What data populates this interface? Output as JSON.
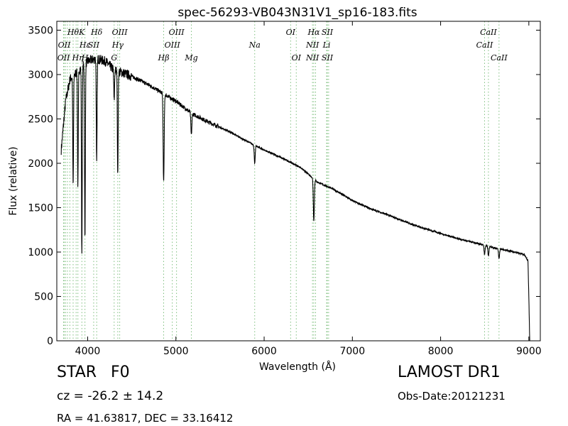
{
  "chart_data": {
    "type": "line",
    "title": "spec-56293-VB043N31V1_sp16-183.fits",
    "xlabel": "Wavelength (Å)",
    "ylabel": "Flux (relative)",
    "xlim": [
      3650,
      9130
    ],
    "ylim": [
      0,
      3600
    ],
    "xticks": [
      4000,
      5000,
      6000,
      7000,
      8000,
      9000
    ],
    "yticks": [
      0,
      500,
      1000,
      1500,
      2000,
      2500,
      3000,
      3500
    ],
    "grid": false,
    "series": [
      {
        "color": "#000000",
        "continuum": [
          [
            3700,
            2150
          ],
          [
            3750,
            2700
          ],
          [
            3800,
            2950
          ],
          [
            3900,
            3050
          ],
          [
            4000,
            3150
          ],
          [
            4100,
            3180
          ],
          [
            4200,
            3150
          ],
          [
            4300,
            3050
          ],
          [
            4400,
            3020
          ],
          [
            4500,
            2980
          ],
          [
            4600,
            2930
          ],
          [
            4700,
            2880
          ],
          [
            4800,
            2820
          ],
          [
            5000,
            2700
          ],
          [
            5200,
            2550
          ],
          [
            5400,
            2450
          ],
          [
            5600,
            2360
          ],
          [
            5800,
            2250
          ],
          [
            6000,
            2150
          ],
          [
            6200,
            2060
          ],
          [
            6400,
            1960
          ],
          [
            6500,
            1880
          ],
          [
            6600,
            1790
          ],
          [
            6800,
            1700
          ],
          [
            7000,
            1580
          ],
          [
            7200,
            1490
          ],
          [
            7400,
            1420
          ],
          [
            7600,
            1340
          ],
          [
            7800,
            1270
          ],
          [
            8000,
            1210
          ],
          [
            8200,
            1150
          ],
          [
            8400,
            1100
          ],
          [
            8600,
            1050
          ],
          [
            8800,
            1010
          ],
          [
            8950,
            970
          ],
          [
            8990,
            900
          ],
          [
            9000,
            500
          ],
          [
            9010,
            0
          ]
        ],
        "absorption_lines": [
          {
            "wave": 3835,
            "depth": 1250
          },
          {
            "wave": 3889,
            "depth": 1300
          },
          {
            "wave": 3934,
            "depth": 2100
          },
          {
            "wave": 3969,
            "depth": 2000
          },
          {
            "wave": 4102,
            "depth": 1200
          },
          {
            "wave": 4300,
            "depth": 350
          },
          {
            "wave": 4341,
            "depth": 1200
          },
          {
            "wave": 4861,
            "depth": 1000
          },
          {
            "wave": 5175,
            "depth": 250
          },
          {
            "wave": 5893,
            "depth": 200
          },
          {
            "wave": 6563,
            "depth": 470
          },
          {
            "wave": 8498,
            "depth": 100
          },
          {
            "wave": 8542,
            "depth": 110
          },
          {
            "wave": 8662,
            "depth": 110
          }
        ]
      }
    ],
    "line_markers": [
      {
        "wave": 3727,
        "labels": [
          {
            "text": "OII",
            "row": 3
          }
        ]
      },
      {
        "wave": 3734,
        "labels": [
          {
            "text": "OII",
            "row": 2
          }
        ]
      },
      {
        "wave": 3750,
        "labels": []
      },
      {
        "wave": 3771,
        "labels": []
      },
      {
        "wave": 3798,
        "labels": []
      },
      {
        "wave": 3835,
        "labels": [
          {
            "text": "Hθ",
            "row": 1
          }
        ]
      },
      {
        "wave": 3869,
        "labels": []
      },
      {
        "wave": 3889,
        "labels": [
          {
            "text": "Hη",
            "row": 3
          }
        ]
      },
      {
        "wave": 3934,
        "labels": [
          {
            "text": "K",
            "row": 1
          }
        ]
      },
      {
        "wave": 3969,
        "labels": [
          {
            "text": "Hε",
            "row": 2
          },
          {
            "text": "H",
            "row": 3
          }
        ]
      },
      {
        "wave": 4068,
        "labels": [
          {
            "text": "SII",
            "row": 2
          }
        ]
      },
      {
        "wave": 4102,
        "labels": [
          {
            "text": "Hδ",
            "row": 1
          }
        ]
      },
      {
        "wave": 4300,
        "labels": [
          {
            "text": "G",
            "row": 3
          }
        ]
      },
      {
        "wave": 4341,
        "labels": [
          {
            "text": "Hγ",
            "row": 2
          }
        ]
      },
      {
        "wave": 4363,
        "labels": [
          {
            "text": "OIII",
            "row": 1
          }
        ]
      },
      {
        "wave": 4861,
        "labels": [
          {
            "text": "Hβ",
            "row": 3
          }
        ]
      },
      {
        "wave": 4959,
        "labels": [
          {
            "text": "OIII",
            "row": 2
          }
        ]
      },
      {
        "wave": 5007,
        "labels": [
          {
            "text": "OIII",
            "row": 1
          }
        ]
      },
      {
        "wave": 5175,
        "labels": [
          {
            "text": "Mg",
            "row": 3
          }
        ]
      },
      {
        "wave": 5893,
        "labels": [
          {
            "text": "Na",
            "row": 2
          }
        ]
      },
      {
        "wave": 6300,
        "labels": [
          {
            "text": "OI",
            "row": 1
          }
        ]
      },
      {
        "wave": 6364,
        "labels": [
          {
            "text": "OI",
            "row": 3
          }
        ]
      },
      {
        "wave": 6548,
        "labels": [
          {
            "text": "NII",
            "row": 2
          },
          {
            "text": "NII",
            "row": 3
          }
        ]
      },
      {
        "wave": 6563,
        "labels": [
          {
            "text": "Hα",
            "row": 1
          }
        ]
      },
      {
        "wave": 6583,
        "labels": []
      },
      {
        "wave": 6708,
        "labels": [
          {
            "text": "Li",
            "row": 2
          }
        ]
      },
      {
        "wave": 6716,
        "labels": [
          {
            "text": "SII",
            "row": 1
          },
          {
            "text": "SII",
            "row": 3
          }
        ]
      },
      {
        "wave": 6731,
        "labels": []
      },
      {
        "wave": 8498,
        "labels": [
          {
            "text": "CaII",
            "row": 2
          }
        ]
      },
      {
        "wave": 8542,
        "labels": [
          {
            "text": "CaII",
            "row": 1
          }
        ]
      },
      {
        "wave": 8662,
        "labels": [
          {
            "text": "CaII",
            "row": 3
          }
        ]
      }
    ]
  },
  "info": {
    "class_label": "STAR",
    "subclass": "F0",
    "cz": "cz = -26.2 ± 14.2",
    "radec": "RA = 41.63817, DEC = 33.16412",
    "survey": "LAMOST DR1",
    "obs_date": "Obs-Date:20121231"
  },
  "colors": {
    "marker": "#7fbf7f",
    "spectrum": "#000000"
  }
}
